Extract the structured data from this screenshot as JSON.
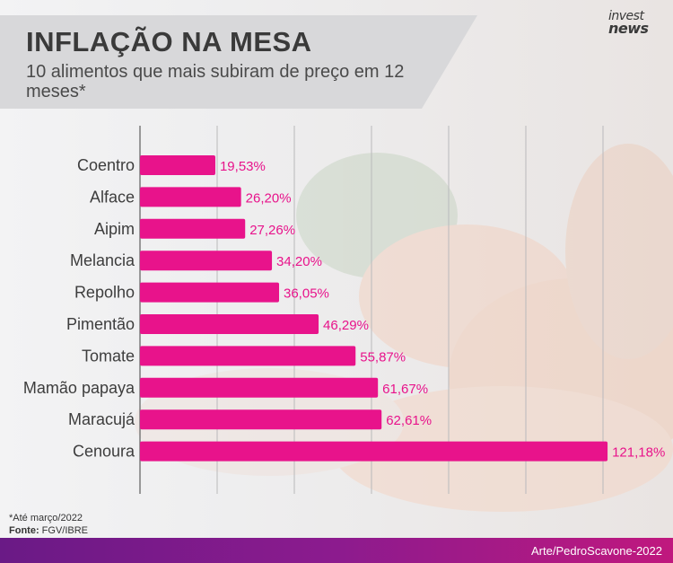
{
  "header": {
    "title": "INFLAÇÃO NA MESA",
    "subtitle": "10 alimentos que mais subiram de preço em 12 meses*"
  },
  "logo": {
    "line1": "invest",
    "line2": "news"
  },
  "footer": {
    "note": "*Até março/2022",
    "source_label": "Fonte:",
    "source_value": "FGV/IBRE",
    "credit": "Arte/PedroScavone-2022"
  },
  "colors": {
    "bar": "#e8138b",
    "value_label": "#e8138b",
    "category_label": "#3d3d3d",
    "title": "#3a3a3a",
    "footer_gradient_start": "#6a1a86",
    "footer_gradient_end": "#c0187e"
  },
  "chart_data": {
    "type": "bar",
    "orientation": "horizontal",
    "title": "INFLAÇÃO NA MESA",
    "subtitle": "10 alimentos que mais subiram de preço em 12 meses*",
    "categories": [
      "Coentro",
      "Alface",
      "Aipim",
      "Melancia",
      "Repolho",
      "Pimentão",
      "Tomate",
      "Mamão papaya",
      "Maracujá",
      "Cenoura"
    ],
    "values": [
      19.53,
      26.2,
      27.26,
      34.2,
      36.05,
      46.29,
      55.87,
      61.67,
      62.61,
      121.18
    ],
    "value_labels": [
      "19,53%",
      "26,20%",
      "27,26%",
      "34,20%",
      "36,05%",
      "46,29%",
      "55,87%",
      "61,67%",
      "62,61%",
      "121,18%"
    ],
    "unit": "%",
    "xlim": [
      0,
      140
    ],
    "grid": true,
    "grid_step": 20,
    "legend": false
  }
}
